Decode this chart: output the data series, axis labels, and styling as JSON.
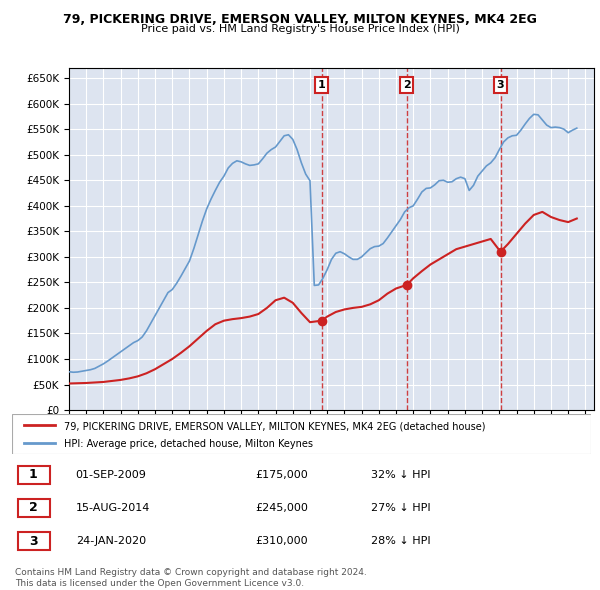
{
  "title": "79, PICKERING DRIVE, EMERSON VALLEY, MILTON KEYNES, MK4 2EG",
  "subtitle": "Price paid vs. HM Land Registry's House Price Index (HPI)",
  "ylim": [
    0,
    670000
  ],
  "yticks": [
    0,
    50000,
    100000,
    150000,
    200000,
    250000,
    300000,
    350000,
    400000,
    450000,
    500000,
    550000,
    600000,
    650000
  ],
  "xlim_start": 1995.0,
  "xlim_end": 2025.5,
  "background_color": "#ffffff",
  "plot_bg_color": "#dde4f0",
  "grid_color": "#ffffff",
  "hpi_color": "#6699cc",
  "price_color": "#cc2222",
  "legend_label_price": "79, PICKERING DRIVE, EMERSON VALLEY, MILTON KEYNES, MK4 2EG (detached house)",
  "legend_label_hpi": "HPI: Average price, detached house, Milton Keynes",
  "transactions": [
    {
      "num": 1,
      "date": "01-SEP-2009",
      "year": 2009.67,
      "price": 175000,
      "pct": "32% ↓ HPI"
    },
    {
      "num": 2,
      "date": "15-AUG-2014",
      "year": 2014.62,
      "price": 245000,
      "pct": "27% ↓ HPI"
    },
    {
      "num": 3,
      "date": "24-JAN-2020",
      "year": 2020.07,
      "price": 310000,
      "pct": "28% ↓ HPI"
    }
  ],
  "footer_line1": "Contains HM Land Registry data © Crown copyright and database right 2024.",
  "footer_line2": "This data is licensed under the Open Government Licence v3.0.",
  "hpi_years": [
    1995.0,
    1995.25,
    1995.5,
    1995.75,
    1996.0,
    1996.25,
    1996.5,
    1996.75,
    1997.0,
    1997.25,
    1997.5,
    1997.75,
    1998.0,
    1998.25,
    1998.5,
    1998.75,
    1999.0,
    1999.25,
    1999.5,
    1999.75,
    2000.0,
    2000.25,
    2000.5,
    2000.75,
    2001.0,
    2001.25,
    2001.5,
    2001.75,
    2002.0,
    2002.25,
    2002.5,
    2002.75,
    2003.0,
    2003.25,
    2003.5,
    2003.75,
    2004.0,
    2004.25,
    2004.5,
    2004.75,
    2005.0,
    2005.25,
    2005.5,
    2005.75,
    2006.0,
    2006.25,
    2006.5,
    2006.75,
    2007.0,
    2007.25,
    2007.5,
    2007.75,
    2008.0,
    2008.25,
    2008.5,
    2008.75,
    2009.0,
    2009.25,
    2009.5,
    2009.75,
    2010.0,
    2010.25,
    2010.5,
    2010.75,
    2011.0,
    2011.25,
    2011.5,
    2011.75,
    2012.0,
    2012.25,
    2012.5,
    2012.75,
    2013.0,
    2013.25,
    2013.5,
    2013.75,
    2014.0,
    2014.25,
    2014.5,
    2014.75,
    2015.0,
    2015.25,
    2015.5,
    2015.75,
    2016.0,
    2016.25,
    2016.5,
    2016.75,
    2017.0,
    2017.25,
    2017.5,
    2017.75,
    2018.0,
    2018.25,
    2018.5,
    2018.75,
    2019.0,
    2019.25,
    2019.5,
    2019.75,
    2020.0,
    2020.25,
    2020.5,
    2020.75,
    2021.0,
    2021.25,
    2021.5,
    2021.75,
    2022.0,
    2022.25,
    2022.5,
    2022.75,
    2023.0,
    2023.25,
    2023.5,
    2023.75,
    2024.0,
    2024.25,
    2024.5
  ],
  "hpi_values": [
    75000,
    74000,
    74500,
    76000,
    77500,
    79000,
    81500,
    86000,
    90500,
    96000,
    102000,
    108000,
    114000,
    120000,
    126000,
    132000,
    136000,
    143000,
    155000,
    170000,
    185000,
    200000,
    215000,
    230000,
    236000,
    248000,
    262000,
    277000,
    292000,
    316000,
    343000,
    370000,
    394000,
    413000,
    430000,
    446000,
    458000,
    474000,
    483000,
    488000,
    486000,
    482000,
    479000,
    480000,
    482000,
    492000,
    503000,
    510000,
    515000,
    526000,
    537000,
    539000,
    530000,
    510000,
    484000,
    462000,
    449000,
    244000,
    245000,
    258000,
    275000,
    295000,
    307000,
    310000,
    306000,
    300000,
    295000,
    295000,
    300000,
    308000,
    316000,
    320000,
    321000,
    326000,
    337000,
    349000,
    361000,
    373000,
    388000,
    396000,
    400000,
    413000,
    427000,
    434000,
    435000,
    441000,
    449000,
    450000,
    446000,
    447000,
    453000,
    456000,
    453000,
    430000,
    440000,
    458000,
    468000,
    478000,
    484000,
    494000,
    510000,
    525000,
    533000,
    537000,
    538000,
    548000,
    560000,
    571000,
    579000,
    578000,
    568000,
    558000,
    553000,
    554000,
    553000,
    550000,
    543000,
    548000,
    552000
  ],
  "price_years": [
    1995.0,
    1995.5,
    1996.0,
    1996.5,
    1997.0,
    1997.5,
    1998.0,
    1998.5,
    1999.0,
    1999.5,
    2000.0,
    2000.5,
    2001.0,
    2001.5,
    2002.0,
    2002.5,
    2003.0,
    2003.5,
    2004.0,
    2004.5,
    2005.0,
    2005.5,
    2006.0,
    2006.5,
    2007.0,
    2007.5,
    2008.0,
    2008.5,
    2009.0,
    2009.67,
    2010.0,
    2010.5,
    2011.0,
    2011.5,
    2012.0,
    2012.5,
    2013.0,
    2013.5,
    2014.0,
    2014.62,
    2015.0,
    2015.5,
    2016.0,
    2016.5,
    2017.0,
    2017.5,
    2018.0,
    2018.5,
    2019.0,
    2019.5,
    2020.07,
    2020.5,
    2021.0,
    2021.5,
    2022.0,
    2022.5,
    2023.0,
    2023.5,
    2024.0,
    2024.5
  ],
  "price_values": [
    52000,
    52500,
    53000,
    54000,
    55000,
    57000,
    59000,
    62000,
    66000,
    72000,
    80000,
    90000,
    100000,
    112000,
    125000,
    140000,
    155000,
    168000,
    175000,
    178000,
    180000,
    183000,
    188000,
    200000,
    215000,
    220000,
    210000,
    190000,
    172000,
    175000,
    183000,
    192000,
    197000,
    200000,
    202000,
    207000,
    215000,
    228000,
    238000,
    245000,
    258000,
    272000,
    285000,
    295000,
    305000,
    315000,
    320000,
    325000,
    330000,
    335000,
    310000,
    325000,
    345000,
    365000,
    382000,
    388000,
    378000,
    372000,
    368000,
    375000
  ]
}
